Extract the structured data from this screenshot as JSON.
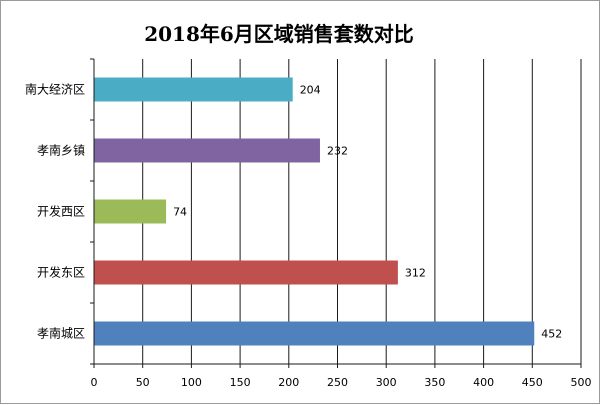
{
  "chart_data": {
    "type": "bar",
    "orientation": "horizontal",
    "title": "2018年6月区域销售套数对比",
    "categories": [
      "南大经济区",
      "孝南乡镇",
      "开发西区",
      "开发东区",
      "孝南城区"
    ],
    "values": [
      204,
      232,
      74,
      312,
      452
    ],
    "colors": [
      "#4bacc6",
      "#8064a2",
      "#9bbb59",
      "#c0504d",
      "#4f81bd"
    ],
    "xlim": [
      0,
      500
    ],
    "xticks": [
      0,
      50,
      100,
      150,
      200,
      250,
      300,
      350,
      400,
      450,
      500
    ],
    "grid": true,
    "legend": "none",
    "data_labels": true
  }
}
